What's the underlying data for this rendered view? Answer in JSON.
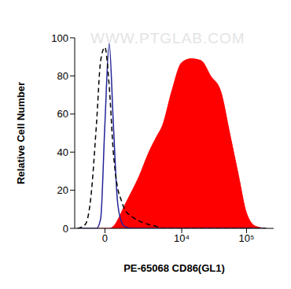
{
  "chart_data": {
    "type": "histogram",
    "watermark": "WWW.PTGLAB.COM",
    "x_label": "PE-65068 CD86(GL1)",
    "y_label": "Relative Cell Number",
    "log": "x",
    "grid": false,
    "xlim": [
      -1700,
      262144
    ],
    "xticks": [
      {
        "value": 0,
        "label": "0"
      },
      {
        "value": 10000,
        "label": "10⁴"
      },
      {
        "value": 100000,
        "label": "10⁵"
      }
    ],
    "ylim": [
      0,
      100
    ],
    "yticks": [
      0,
      20,
      40,
      60,
      80,
      100
    ],
    "x": [
      -1500,
      -1000,
      -700,
      -400,
      -200,
      0,
      200,
      400,
      600,
      800,
      1000,
      1500,
      2000,
      3000,
      4000,
      5000,
      7000,
      10000,
      14000,
      20000,
      28000,
      40000,
      55000,
      75000,
      100000,
      140000,
      200000
    ],
    "series": [
      {
        "type": "area",
        "color": "#ff0000",
        "line_style": "solid",
        "values": [
          0,
          0,
          0,
          0,
          0,
          0,
          0,
          1,
          4,
          8,
          12,
          20,
          27,
          40,
          48,
          54,
          72,
          87,
          89,
          88,
          80,
          72,
          50,
          28,
          8,
          1,
          0
        ]
      },
      {
        "type": "line",
        "color": "#23239a",
        "line_style": "solid",
        "values": [
          0,
          0,
          0,
          0,
          5,
          55,
          97,
          55,
          15,
          4,
          1,
          0,
          0,
          0,
          0,
          0,
          0,
          0,
          0,
          0,
          0,
          0,
          0,
          0,
          0,
          0,
          0
        ]
      },
      {
        "type": "line",
        "color": "#000000",
        "line_style": "dashed",
        "values": [
          0,
          2,
          15,
          55,
          88,
          95,
          75,
          40,
          22,
          15,
          10,
          6,
          4,
          2,
          1,
          0,
          0,
          0,
          0,
          0,
          0,
          0,
          0,
          0,
          0,
          0,
          0
        ]
      }
    ]
  }
}
